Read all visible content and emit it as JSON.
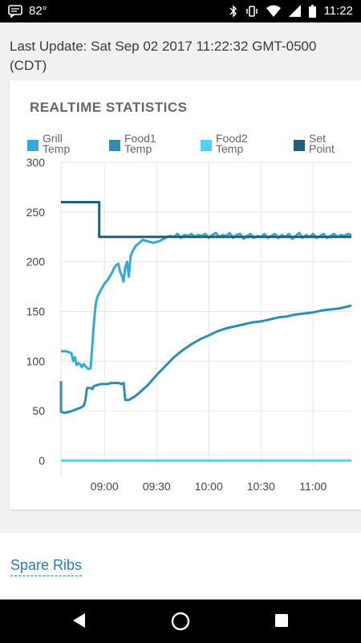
{
  "status_bar": {
    "temperature": "82°",
    "time": "11:22",
    "icons": [
      "chat-notification-icon",
      "bluetooth-icon",
      "vibrate-icon",
      "wifi-icon",
      "signal-icon",
      "battery-icon"
    ]
  },
  "last_update": "Last Update: Sat Sep 02 2017 11:22:32 GMT-0500 (CDT)",
  "stats_card": {
    "title": "REALTIME STATISTICS"
  },
  "recipe": {
    "link_label": "Spare Ribs"
  },
  "navbar": {
    "icons": [
      "back-icon",
      "home-icon",
      "recents-icon"
    ]
  },
  "colors": {
    "grill": "#35a8dc",
    "food1": "#2e8db5",
    "food2": "#4fd0f7",
    "setpoint": "#1f5f7a",
    "grid": "#e6e6e6",
    "link": "#2a7ab8"
  },
  "chart_data": {
    "type": "line",
    "title": "REALTIME STATISTICS",
    "legend_position": "top",
    "grid": true,
    "x_ticks": [
      "09:00",
      "09:30",
      "10:00",
      "10:30",
      "11:00"
    ],
    "y_ticks": [
      0,
      50,
      100,
      150,
      200,
      250,
      300
    ],
    "xlim": [
      "08:35",
      "11:22"
    ],
    "ylim": [
      0,
      300
    ],
    "series": [
      {
        "name": "Grill Temp",
        "color": "#35a8dc",
        "points": [
          [
            "08:35",
            110
          ],
          [
            "08:38",
            110
          ],
          [
            "08:41",
            108
          ],
          [
            "08:42",
            100
          ],
          [
            "08:43",
            104
          ],
          [
            "08:44",
            96
          ],
          [
            "08:45",
            98
          ],
          [
            "08:46",
            97
          ],
          [
            "08:47",
            94
          ],
          [
            "08:48",
            97
          ],
          [
            "08:49",
            95
          ],
          [
            "08:50",
            93
          ],
          [
            "08:51",
            92
          ],
          [
            "08:52",
            93
          ],
          [
            "08:53",
            115
          ],
          [
            "08:54",
            140
          ],
          [
            "08:55",
            158
          ],
          [
            "08:56",
            165
          ],
          [
            "08:58",
            172
          ],
          [
            "09:00",
            178
          ],
          [
            "09:01",
            180
          ],
          [
            "09:02",
            182
          ],
          [
            "09:04",
            188
          ],
          [
            "09:06",
            195
          ],
          [
            "09:07",
            197
          ],
          [
            "09:08",
            198
          ],
          [
            "09:09",
            190
          ],
          [
            "09:10",
            186
          ],
          [
            "09:11",
            180
          ],
          [
            "09:12",
            195
          ],
          [
            "09:13",
            200
          ],
          [
            "09:14",
            185
          ],
          [
            "09:15",
            205
          ],
          [
            "09:16",
            210
          ],
          [
            "09:18",
            216
          ],
          [
            "09:20",
            219
          ],
          [
            "09:22",
            222
          ],
          [
            "09:24",
            221
          ],
          [
            "09:26",
            220
          ],
          [
            "09:28",
            219
          ],
          [
            "09:30",
            220
          ],
          [
            "09:32",
            221
          ],
          [
            "09:34",
            223
          ],
          [
            "09:36",
            225
          ],
          [
            "09:38",
            226
          ],
          [
            "09:40",
            225
          ],
          [
            "09:42",
            228
          ],
          [
            "09:44",
            224
          ],
          [
            "09:46",
            227
          ],
          [
            "09:48",
            226
          ],
          [
            "09:50",
            228
          ],
          [
            "09:52",
            225
          ],
          [
            "09:54",
            227
          ],
          [
            "09:56",
            226
          ],
          [
            "09:58",
            228
          ],
          [
            "10:00",
            224
          ],
          [
            "10:02",
            227
          ],
          [
            "10:04",
            229
          ],
          [
            "10:06",
            225
          ],
          [
            "10:08",
            227
          ],
          [
            "10:10",
            226
          ],
          [
            "10:12",
            229
          ],
          [
            "10:14",
            224
          ],
          [
            "10:16",
            227
          ],
          [
            "10:18",
            228
          ],
          [
            "10:20",
            223
          ],
          [
            "10:22",
            226
          ],
          [
            "10:24",
            228
          ],
          [
            "10:26",
            224
          ],
          [
            "10:28",
            226
          ],
          [
            "10:30",
            225
          ],
          [
            "10:32",
            228
          ],
          [
            "10:34",
            224
          ],
          [
            "10:36",
            226
          ],
          [
            "10:38",
            228
          ],
          [
            "10:40",
            224
          ],
          [
            "10:42",
            227
          ],
          [
            "10:44",
            225
          ],
          [
            "10:46",
            228
          ],
          [
            "10:48",
            223
          ],
          [
            "10:50",
            226
          ],
          [
            "10:52",
            229
          ],
          [
            "10:54",
            224
          ],
          [
            "10:56",
            227
          ],
          [
            "10:58",
            225
          ],
          [
            "11:00",
            228
          ],
          [
            "11:02",
            224
          ],
          [
            "11:04",
            226
          ],
          [
            "11:06",
            228
          ],
          [
            "11:08",
            224
          ],
          [
            "11:10",
            226
          ],
          [
            "11:12",
            228
          ],
          [
            "11:14",
            225
          ],
          [
            "11:16",
            227
          ],
          [
            "11:18",
            226
          ],
          [
            "11:20",
            228
          ],
          [
            "11:22",
            227
          ]
        ]
      },
      {
        "name": "Food1 Temp",
        "color": "#2e8db5",
        "points": [
          [
            "08:35",
            80
          ],
          [
            "08:35",
            49
          ],
          [
            "08:37",
            48
          ],
          [
            "08:40",
            49
          ],
          [
            "08:43",
            51
          ],
          [
            "08:46",
            53
          ],
          [
            "08:48",
            55
          ],
          [
            "08:49",
            60
          ],
          [
            "08:50",
            73
          ],
          [
            "08:52",
            73
          ],
          [
            "08:53",
            72
          ],
          [
            "08:54",
            75
          ],
          [
            "08:56",
            76
          ],
          [
            "08:58",
            77
          ],
          [
            "09:00",
            77
          ],
          [
            "09:02",
            77
          ],
          [
            "09:04",
            78
          ],
          [
            "09:06",
            78
          ],
          [
            "09:08",
            78
          ],
          [
            "09:10",
            77
          ],
          [
            "09:11",
            78
          ],
          [
            "09:12",
            61
          ],
          [
            "09:14",
            61
          ],
          [
            "09:17",
            64
          ],
          [
            "09:20",
            68
          ],
          [
            "09:25",
            76
          ],
          [
            "09:30",
            86
          ],
          [
            "09:35",
            95
          ],
          [
            "09:40",
            104
          ],
          [
            "09:45",
            111
          ],
          [
            "09:50",
            117
          ],
          [
            "09:55",
            122
          ],
          [
            "10:00",
            126
          ],
          [
            "10:05",
            130
          ],
          [
            "10:10",
            133
          ],
          [
            "10:15",
            135
          ],
          [
            "10:20",
            137
          ],
          [
            "10:25",
            139
          ],
          [
            "10:30",
            140
          ],
          [
            "10:35",
            142
          ],
          [
            "10:40",
            144
          ],
          [
            "10:45",
            145
          ],
          [
            "10:50",
            147
          ],
          [
            "10:55",
            148
          ],
          [
            "11:00",
            149
          ],
          [
            "11:05",
            151
          ],
          [
            "11:10",
            152
          ],
          [
            "11:15",
            153
          ],
          [
            "11:20",
            155
          ],
          [
            "11:22",
            156
          ]
        ]
      },
      {
        "name": "Food2 Temp",
        "color": "#4fd0f7",
        "points": [
          [
            "08:35",
            0
          ],
          [
            "11:22",
            0
          ]
        ]
      },
      {
        "name": "Set Point",
        "color": "#1f5f7a",
        "points": [
          [
            "08:35",
            260
          ],
          [
            "08:57",
            260
          ],
          [
            "08:57",
            225
          ],
          [
            "11:22",
            225
          ]
        ]
      }
    ]
  }
}
